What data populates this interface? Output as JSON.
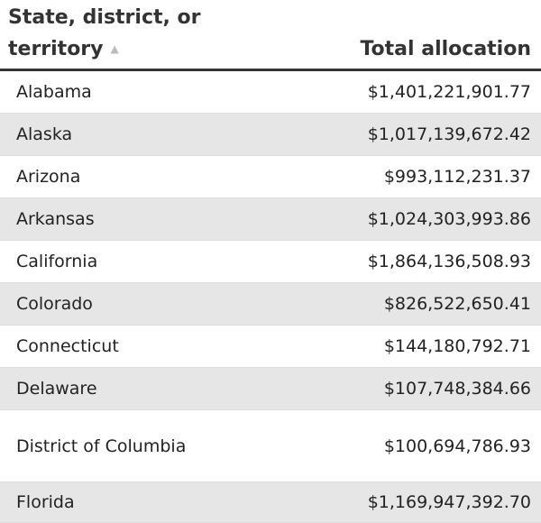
{
  "table": {
    "headers": {
      "state_line1": "State, district, or",
      "state_line2": "territory",
      "amount": "Total allocation"
    },
    "sort_icon": "sort-ascending-icon",
    "rows": [
      {
        "state": "Alabama",
        "amount": "$1,401,221,901.77"
      },
      {
        "state": "Alaska",
        "amount": "$1,017,139,672.42"
      },
      {
        "state": "Arizona",
        "amount": "$993,112,231.37"
      },
      {
        "state": "Arkansas",
        "amount": "$1,024,303,993.86"
      },
      {
        "state": "California",
        "amount": "$1,864,136,508.93"
      },
      {
        "state": "Colorado",
        "amount": "$826,522,650.41"
      },
      {
        "state": "Connecticut",
        "amount": "$144,180,792.71"
      },
      {
        "state": "Delaware",
        "amount": "$107,748,384.66"
      },
      {
        "state": "District of Columbia",
        "amount": "$100,694,786.93"
      },
      {
        "state": "Florida",
        "amount": "$1,169,947,392.70"
      }
    ]
  }
}
